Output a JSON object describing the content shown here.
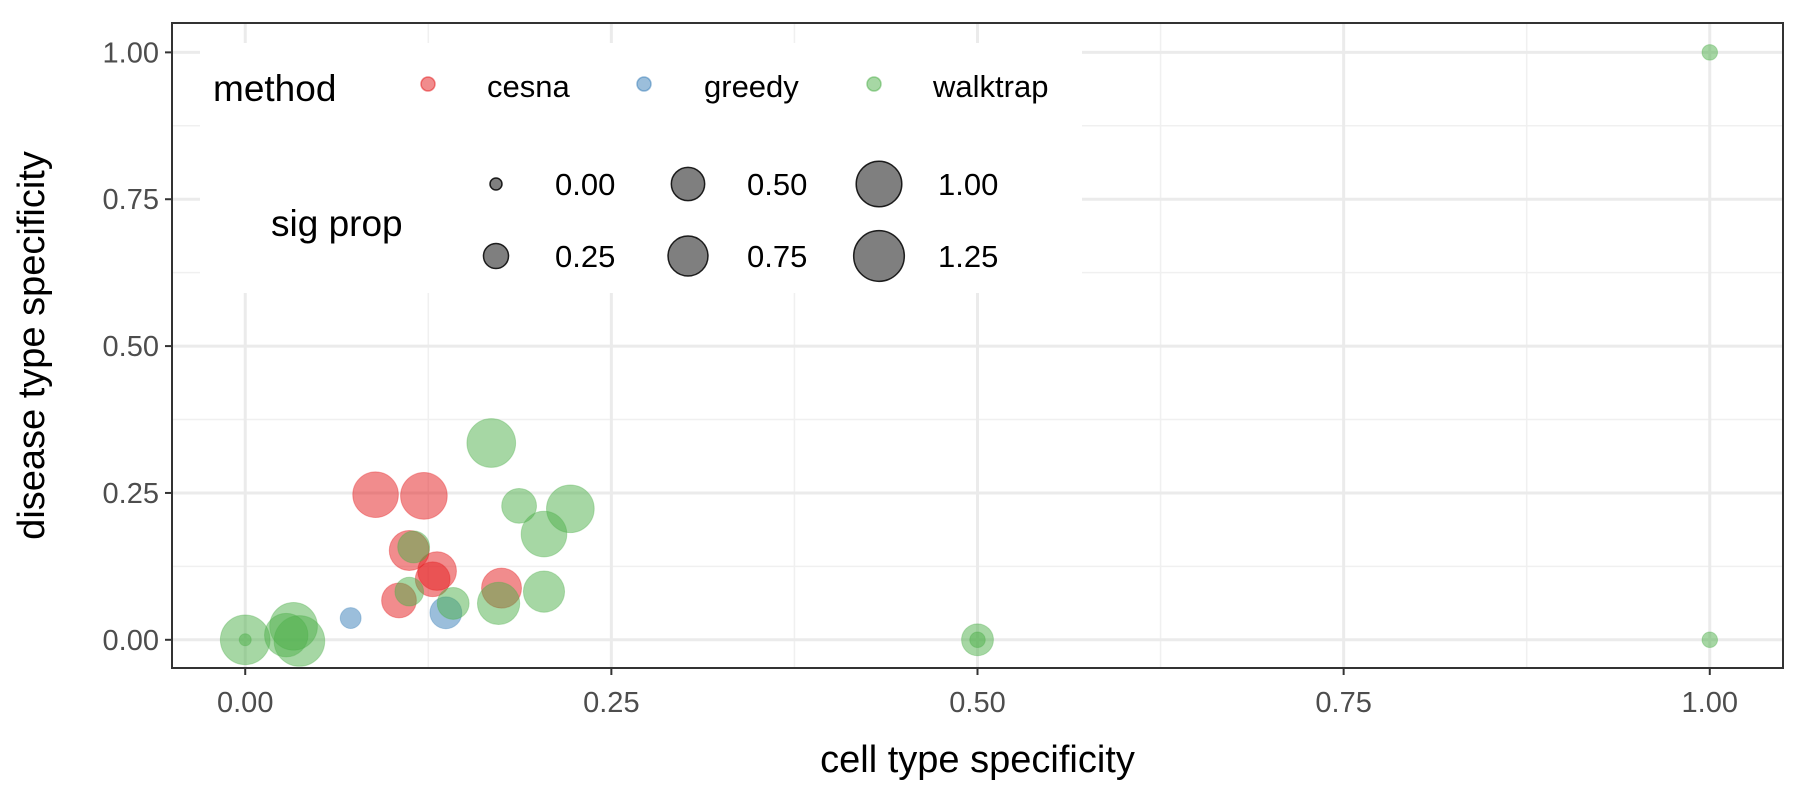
{
  "chart_data": {
    "type": "scatter",
    "xlabel": "cell type specificity",
    "ylabel": "disease type specificity",
    "xlim": [
      -0.05,
      1.05
    ],
    "ylim": [
      -0.048,
      1.05
    ],
    "xticks": [
      0.0,
      0.25,
      0.5,
      0.75,
      1.0
    ],
    "yticks": [
      0.0,
      0.25,
      0.5,
      0.75,
      1.0
    ],
    "xtick_labels": [
      "0.00",
      "0.25",
      "0.50",
      "0.75",
      "1.00"
    ],
    "ytick_labels": [
      "0.00",
      "0.25",
      "0.50",
      "0.75",
      "1.00"
    ],
    "grid": true,
    "legend_position": "top-left",
    "color_legend": {
      "title": "method",
      "entries": [
        {
          "name": "cesna",
          "color": "#e41a1c"
        },
        {
          "name": "greedy",
          "color": "#377eb8"
        },
        {
          "name": "walktrap",
          "color": "#4daf4a"
        }
      ]
    },
    "size_legend": {
      "title": "sig prop",
      "entries": [
        {
          "value": 0.0,
          "label": "0.00"
        },
        {
          "value": 0.5,
          "label": "0.50"
        },
        {
          "value": 1.0,
          "label": "1.00"
        },
        {
          "value": 0.25,
          "label": "0.25"
        },
        {
          "value": 0.75,
          "label": "0.75"
        },
        {
          "value": 1.25,
          "label": "1.25"
        }
      ]
    },
    "series": [
      {
        "name": "cesna",
        "color": "#e41a1c",
        "points": [
          {
            "x": 0.089,
            "y": 0.247,
            "size": 1.0
          },
          {
            "x": 0.122,
            "y": 0.245,
            "size": 1.05
          },
          {
            "x": 0.112,
            "y": 0.152,
            "size": 0.75
          },
          {
            "x": 0.131,
            "y": 0.117,
            "size": 0.7
          },
          {
            "x": 0.128,
            "y": 0.103,
            "size": 0.55
          },
          {
            "x": 0.105,
            "y": 0.067,
            "size": 0.55
          },
          {
            "x": 0.175,
            "y": 0.088,
            "size": 0.75
          }
        ]
      },
      {
        "name": "greedy",
        "color": "#377eb8",
        "points": [
          {
            "x": 0.072,
            "y": 0.037,
            "size": 0.15
          },
          {
            "x": 0.137,
            "y": 0.046,
            "size": 0.45
          }
        ]
      },
      {
        "name": "walktrap",
        "color": "#4daf4a",
        "points": [
          {
            "x": 0.168,
            "y": 0.335,
            "size": 1.15
          },
          {
            "x": 0.187,
            "y": 0.228,
            "size": 0.55
          },
          {
            "x": 0.222,
            "y": 0.223,
            "size": 1.1
          },
          {
            "x": 0.204,
            "y": 0.18,
            "size": 1.0
          },
          {
            "x": 0.115,
            "y": 0.158,
            "size": 0.45
          },
          {
            "x": 0.112,
            "y": 0.082,
            "size": 0.35
          },
          {
            "x": 0.142,
            "y": 0.062,
            "size": 0.45
          },
          {
            "x": 0.173,
            "y": 0.062,
            "size": 0.85
          },
          {
            "x": 0.204,
            "y": 0.082,
            "size": 0.8
          },
          {
            "x": 0.0,
            "y": 0.0,
            "size": 1.2
          },
          {
            "x": 0.0,
            "y": 0.0,
            "size": 0.0
          },
          {
            "x": 0.028,
            "y": 0.008,
            "size": 0.9
          },
          {
            "x": 0.033,
            "y": 0.023,
            "size": 1.1
          },
          {
            "x": 0.037,
            "y": -0.002,
            "size": 1.25
          },
          {
            "x": 0.5,
            "y": 0.0,
            "size": 0.45
          },
          {
            "x": 0.5,
            "y": 0.0,
            "size": 0.05
          },
          {
            "x": 1.0,
            "y": 1.0,
            "size": 0.05
          },
          {
            "x": 1.0,
            "y": 0.0,
            "size": 0.05
          }
        ]
      }
    ]
  }
}
